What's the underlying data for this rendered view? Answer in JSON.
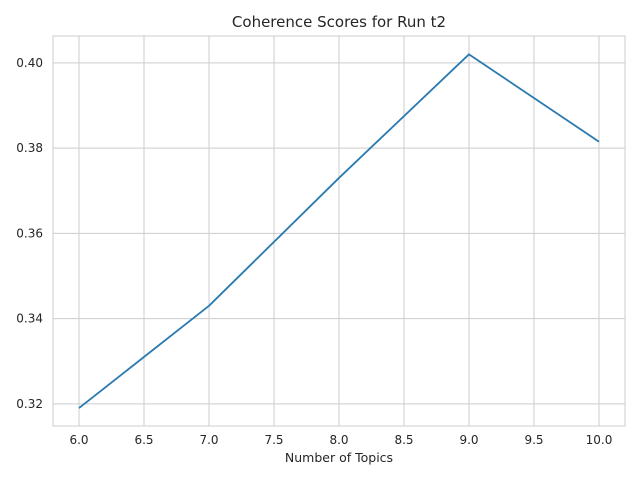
{
  "chart_data": {
    "type": "line",
    "title": "Coherence Scores for Run t2",
    "xlabel": "Number of Topics",
    "ylabel": "",
    "x": [
      6,
      7,
      8,
      9,
      10
    ],
    "series": [
      {
        "values": [
          0.319,
          0.343,
          0.373,
          0.402,
          0.3815
        ],
        "color": "#2a7ab0"
      }
    ],
    "xlim": [
      5.8,
      10.2
    ],
    "ylim": [
      0.3148,
      0.4063
    ],
    "xticks": [
      "6.0",
      "6.5",
      "7.0",
      "7.5",
      "8.0",
      "8.5",
      "9.0",
      "9.5",
      "10.0"
    ],
    "yticks": [
      "0.32",
      "0.34",
      "0.36",
      "0.38",
      "0.40"
    ],
    "grid": true,
    "legend": "none"
  }
}
